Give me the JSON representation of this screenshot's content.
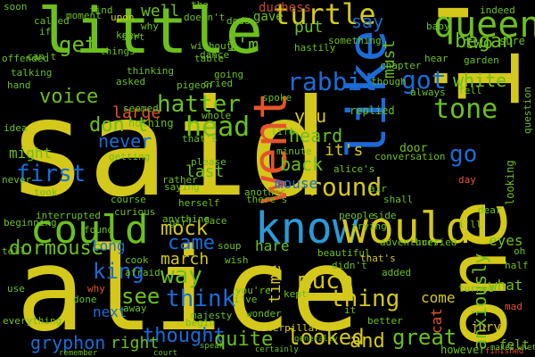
{
  "wordcloud": {
    "background": "#000000",
    "words": [
      {
        "text": "said",
        "color": "#d4c81a"
      },
      {
        "text": "alice",
        "color": "#d4c81a"
      },
      {
        "text": "little",
        "color": "#6cc01c"
      },
      {
        "text": "one",
        "color": "#d4c81a"
      },
      {
        "text": "like",
        "color": "#1a6cd8"
      },
      {
        "text": "i'll",
        "color": "#d4c81a"
      },
      {
        "text": "went",
        "color": "#e4542a"
      },
      {
        "text": "know",
        "color": "#2a9ad8"
      },
      {
        "text": "would",
        "color": "#d4c81a"
      },
      {
        "text": "could",
        "color": "#6cc01c"
      },
      {
        "text": "queen",
        "color": "#6cc01c"
      },
      {
        "text": "turtle",
        "color": "#d4c81a"
      },
      {
        "text": "duchess",
        "color": "#c84a2a"
      },
      {
        "text": "hatter",
        "color": "#6cc01c"
      },
      {
        "text": "rabbit",
        "color": "#1a6cd8"
      },
      {
        "text": "voice",
        "color": "#6cc01c"
      },
      {
        "text": "get",
        "color": "#6cc01c"
      },
      {
        "text": "head",
        "color": "#6cc01c"
      },
      {
        "text": "don't",
        "color": "#6cc01c"
      },
      {
        "text": "never",
        "color": "#1a6cd8"
      },
      {
        "text": "first",
        "color": "#1a6cd8"
      },
      {
        "text": "round",
        "color": "#d4c81a"
      },
      {
        "text": "got",
        "color": "#1a6cd8"
      },
      {
        "text": "white",
        "color": "#6cc01c"
      },
      {
        "text": "tone",
        "color": "#6cc01c"
      },
      {
        "text": "king",
        "color": "#1a6cd8"
      },
      {
        "text": "mock",
        "color": "#d4c81a"
      },
      {
        "text": "came",
        "color": "#1a6cd8"
      },
      {
        "text": "much",
        "color": "#d4c81a"
      },
      {
        "text": "thing",
        "color": "#d4c81a"
      },
      {
        "text": "think",
        "color": "#1a6cd8"
      },
      {
        "text": "see",
        "color": "#6cc01c"
      },
      {
        "text": "way",
        "color": "#6cc01c"
      },
      {
        "text": "thought",
        "color": "#1a6cd8"
      },
      {
        "text": "quite",
        "color": "#6cc01c"
      },
      {
        "text": "looked",
        "color": "#d4c81a"
      },
      {
        "text": "gryphon",
        "color": "#1a6cd8"
      },
      {
        "text": "right",
        "color": "#6cc01c"
      },
      {
        "text": "and",
        "color": "#d4c81a"
      },
      {
        "text": "great",
        "color": "#6cc01c"
      },
      {
        "text": "dormouse",
        "color": "#6cc01c"
      },
      {
        "text": "cat",
        "color": "#e4542a"
      },
      {
        "text": "go",
        "color": "#1a6cd8"
      },
      {
        "text": "began",
        "color": "#6cc01c"
      },
      {
        "text": "must",
        "color": "#6cc01c"
      },
      {
        "text": "say",
        "color": "#1a6cd8"
      },
      {
        "text": "two",
        "color": "#6cc01c"
      },
      {
        "text": "well",
        "color": "#6cc01c"
      },
      {
        "text": "put",
        "color": "#6cc01c"
      },
      {
        "text": "large",
        "color": "#e4542a"
      },
      {
        "text": "you",
        "color": "#d4c81a"
      },
      {
        "text": "heard",
        "color": "#6cc01c"
      },
      {
        "text": "it's",
        "color": "#d4c81a"
      },
      {
        "text": "back",
        "color": "#6cc01c"
      },
      {
        "text": "mouse",
        "color": "#1a6cd8"
      },
      {
        "text": "last",
        "color": "#6cc01c"
      },
      {
        "text": "march",
        "color": "#d4c81a"
      },
      {
        "text": "hare",
        "color": "#6cc01c"
      },
      {
        "text": "time",
        "color": "#d4c81a"
      },
      {
        "text": "i'm",
        "color": "#6cc01c"
      },
      {
        "text": "eyes",
        "color": "#6cc01c"
      },
      {
        "text": "come",
        "color": "#d4c81a"
      },
      {
        "text": "what",
        "color": "#6cc01c"
      },
      {
        "text": "long",
        "color": "#1a6cd8"
      },
      {
        "text": "next",
        "color": "#1a6cd8"
      },
      {
        "text": "might",
        "color": "#6cc01c"
      },
      {
        "text": "anxiously",
        "color": "#6cc01c"
      },
      {
        "text": "jury",
        "color": "#d4c81a"
      },
      {
        "text": "however",
        "color": "#6cc01c"
      },
      {
        "text": "felt",
        "color": "#6cc01c"
      },
      {
        "text": "little",
        "color": "#1a6cd8"
      },
      {
        "text": "soon",
        "color": "#6cc01c"
      },
      {
        "text": "moment",
        "color": "#6cc01c"
      },
      {
        "text": "sort",
        "color": "#6cc01c"
      },
      {
        "text": "things",
        "color": "#6cc01c"
      },
      {
        "text": "asked",
        "color": "#6cc01c"
      },
      {
        "text": "nothing",
        "color": "#6cc01c"
      },
      {
        "text": "replied",
        "color": "#6cc01c"
      },
      {
        "text": "door",
        "color": "#6cc01c"
      },
      {
        "text": "please",
        "color": "#6cc01c"
      },
      {
        "text": "shall",
        "color": "#6cc01c"
      },
      {
        "text": "course",
        "color": "#6cc01c"
      },
      {
        "text": "curious",
        "color": "#6cc01c"
      },
      {
        "text": "added",
        "color": "#6cc01c"
      },
      {
        "text": "turned",
        "color": "#6cc01c"
      },
      {
        "text": "half",
        "color": "#6cc01c"
      },
      {
        "text": "oh",
        "color": "#6cc01c"
      },
      {
        "text": "caterpillar",
        "color": "#d4c81a"
      },
      {
        "text": "remember",
        "color": "#6cc01c"
      },
      {
        "text": "court",
        "color": "#6cc01c"
      },
      {
        "text": "looking",
        "color": "#6cc01c"
      },
      {
        "text": "cried",
        "color": "#6cc01c"
      },
      {
        "text": "going",
        "color": "#6cc01c"
      },
      {
        "text": "upon",
        "color": "#d4c81a"
      },
      {
        "text": "find",
        "color": "#6cc01c"
      },
      {
        "text": "called",
        "color": "#6cc01c"
      },
      {
        "text": "talking",
        "color": "#6cc01c"
      },
      {
        "text": "seemed",
        "color": "#6cc01c"
      },
      {
        "text": "getting",
        "color": "#6cc01c"
      },
      {
        "text": "that's",
        "color": "#6cc01c"
      },
      {
        "text": "without",
        "color": "#6cc01c"
      },
      {
        "text": "table",
        "color": "#6cc01c"
      },
      {
        "text": "dodo",
        "color": "#6cc01c"
      },
      {
        "text": "spoke",
        "color": "#6cc01c"
      },
      {
        "text": "minute",
        "color": "#6cc01c"
      },
      {
        "text": "alice's",
        "color": "#6cc01c"
      },
      {
        "text": "there's",
        "color": "#6cc01c"
      },
      {
        "text": "another",
        "color": "#6cc01c"
      },
      {
        "text": "trying",
        "color": "#6cc01c"
      },
      {
        "text": "soup",
        "color": "#6cc01c"
      },
      {
        "text": "beautiful",
        "color": "#6cc01c"
      },
      {
        "text": "adventures",
        "color": "#6cc01c"
      },
      {
        "text": "hurried",
        "color": "#6cc01c"
      },
      {
        "text": "that's",
        "color": "#d4c81a"
      },
      {
        "text": "didn't",
        "color": "#6cc01c"
      },
      {
        "text": "kept",
        "color": "#6cc01c"
      },
      {
        "text": "wonder",
        "color": "#6cc01c"
      },
      {
        "text": "majesty",
        "color": "#6cc01c"
      },
      {
        "text": "better",
        "color": "#6cc01c"
      },
      {
        "text": "begin",
        "color": "#6cc01c"
      },
      {
        "text": "cook",
        "color": "#6cc01c"
      },
      {
        "text": "afraid",
        "color": "#6cc01c"
      },
      {
        "text": "wish",
        "color": "#6cc01c"
      },
      {
        "text": "done",
        "color": "#6cc01c"
      },
      {
        "text": "away",
        "color": "#6cc01c"
      },
      {
        "text": "tell",
        "color": "#6cc01c"
      },
      {
        "text": "use",
        "color": "#6cc01c"
      },
      {
        "text": "never",
        "color": "#6cc01c"
      },
      {
        "text": "hand",
        "color": "#6cc01c"
      },
      {
        "text": "idea",
        "color": "#6cc01c"
      },
      {
        "text": "took",
        "color": "#6cc01c"
      },
      {
        "text": "knew",
        "color": "#6cc01c"
      },
      {
        "text": "dance",
        "color": "#6cc01c"
      },
      {
        "text": "something",
        "color": "#6cc01c"
      },
      {
        "text": "hastily",
        "color": "#6cc01c"
      },
      {
        "text": "though",
        "color": "#6cc01c"
      },
      {
        "text": "always",
        "color": "#6cc01c"
      },
      {
        "text": "question",
        "color": "#6cc01c"
      },
      {
        "text": "finished",
        "color": "#e4542a"
      },
      {
        "text": "makes",
        "color": "#6cc01c"
      },
      {
        "text": "whether",
        "color": "#6cc01c"
      },
      {
        "text": "speak",
        "color": "#6cc01c"
      },
      {
        "text": "certainly",
        "color": "#6cc01c"
      },
      {
        "text": "generally",
        "color": "#6cc01c"
      },
      {
        "text": "everything",
        "color": "#6cc01c"
      },
      {
        "text": "indeed",
        "color": "#6cc01c"
      },
      {
        "text": "saying",
        "color": "#6cc01c"
      },
      {
        "text": "herself",
        "color": "#6cc01c"
      },
      {
        "text": "rather",
        "color": "#6cc01c"
      },
      {
        "text": "life",
        "color": "#6cc01c"
      },
      {
        "text": "air",
        "color": "#6cc01c"
      },
      {
        "text": "side",
        "color": "#6cc01c"
      },
      {
        "text": "mad",
        "color": "#e4542a"
      },
      {
        "text": "dear",
        "color": "#6cc01c"
      },
      {
        "text": "day",
        "color": "#e4542a"
      },
      {
        "text": "can't",
        "color": "#6cc01c"
      },
      {
        "text": "i've",
        "color": "#6cc01c"
      },
      {
        "text": "i'll",
        "color": "#6cc01c"
      },
      {
        "text": "you're",
        "color": "#6cc01c"
      },
      {
        "text": "it",
        "color": "#6cc01c"
      },
      {
        "text": "if",
        "color": "#6cc01c"
      },
      {
        "text": "the",
        "color": "#6cc01c"
      },
      {
        "text": "gave",
        "color": "#6cc01c"
      },
      {
        "text": "doesn't",
        "color": "#6cc01c"
      },
      {
        "text": "why",
        "color": "#6cc01c"
      },
      {
        "text": "whole",
        "color": "#6cc01c"
      },
      {
        "text": "why",
        "color": "#e4542a"
      },
      {
        "text": "found",
        "color": "#6cc01c"
      },
      {
        "text": "face",
        "color": "#6cc01c"
      },
      {
        "text": "girl",
        "color": "#6cc01c"
      },
      {
        "text": "people",
        "color": "#6cc01c"
      },
      {
        "text": "anything",
        "color": "#6cc01c"
      },
      {
        "text": "interrupted",
        "color": "#6cc01c"
      },
      {
        "text": "beginning",
        "color": "#6cc01c"
      },
      {
        "text": "offended",
        "color": "#6cc01c"
      },
      {
        "text": "thinking",
        "color": "#6cc01c"
      },
      {
        "text": "pigeon",
        "color": "#6cc01c"
      },
      {
        "text": "chapter",
        "color": "#6cc01c"
      },
      {
        "text": "baby",
        "color": "#6cc01c"
      },
      {
        "text": "hear",
        "color": "#6cc01c"
      },
      {
        "text": "fell",
        "color": "#6cc01c"
      },
      {
        "text": "garden",
        "color": "#6cc01c"
      },
      {
        "text": "conversation",
        "color": "#6cc01c"
      },
      {
        "text": "sure",
        "color": "#6cc01c"
      },
      {
        "text": "they're",
        "color": "#6cc01c"
      },
      {
        "text": "end",
        "color": "#6cc01c"
      },
      {
        "text": "till",
        "color": "#6cc01c"
      }
    ]
  }
}
